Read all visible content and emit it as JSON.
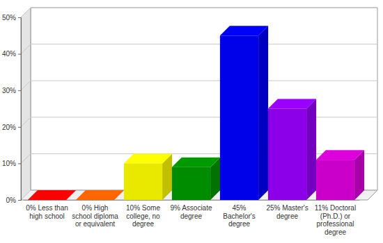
{
  "chart_data": {
    "type": "bar",
    "categories": [
      "0% Less than high school",
      "0% High school diploma or equivalent",
      "10% Some college, no degree",
      "9% Associate degree",
      "45% Bachelor's degree",
      "25% Master's degree",
      "11% Doctoral (Ph.D.) or professional degree"
    ],
    "values": [
      0,
      0,
      10,
      9,
      45,
      25,
      11
    ],
    "colors": [
      "#ff0000",
      "#ff6600",
      "#ffff00",
      "#009900",
      "#0000ff",
      "#9900ff",
      "#dd00dd"
    ],
    "ylim": [
      0,
      50
    ],
    "yticks": [
      {
        "value": 0,
        "label": "0%"
      },
      {
        "value": 10,
        "label": "10%"
      },
      {
        "value": 20,
        "label": "20%"
      },
      {
        "value": 30,
        "label": "30%"
      },
      {
        "value": 40,
        "label": "40%"
      },
      {
        "value": 50,
        "label": "50%"
      }
    ],
    "grid": true
  }
}
